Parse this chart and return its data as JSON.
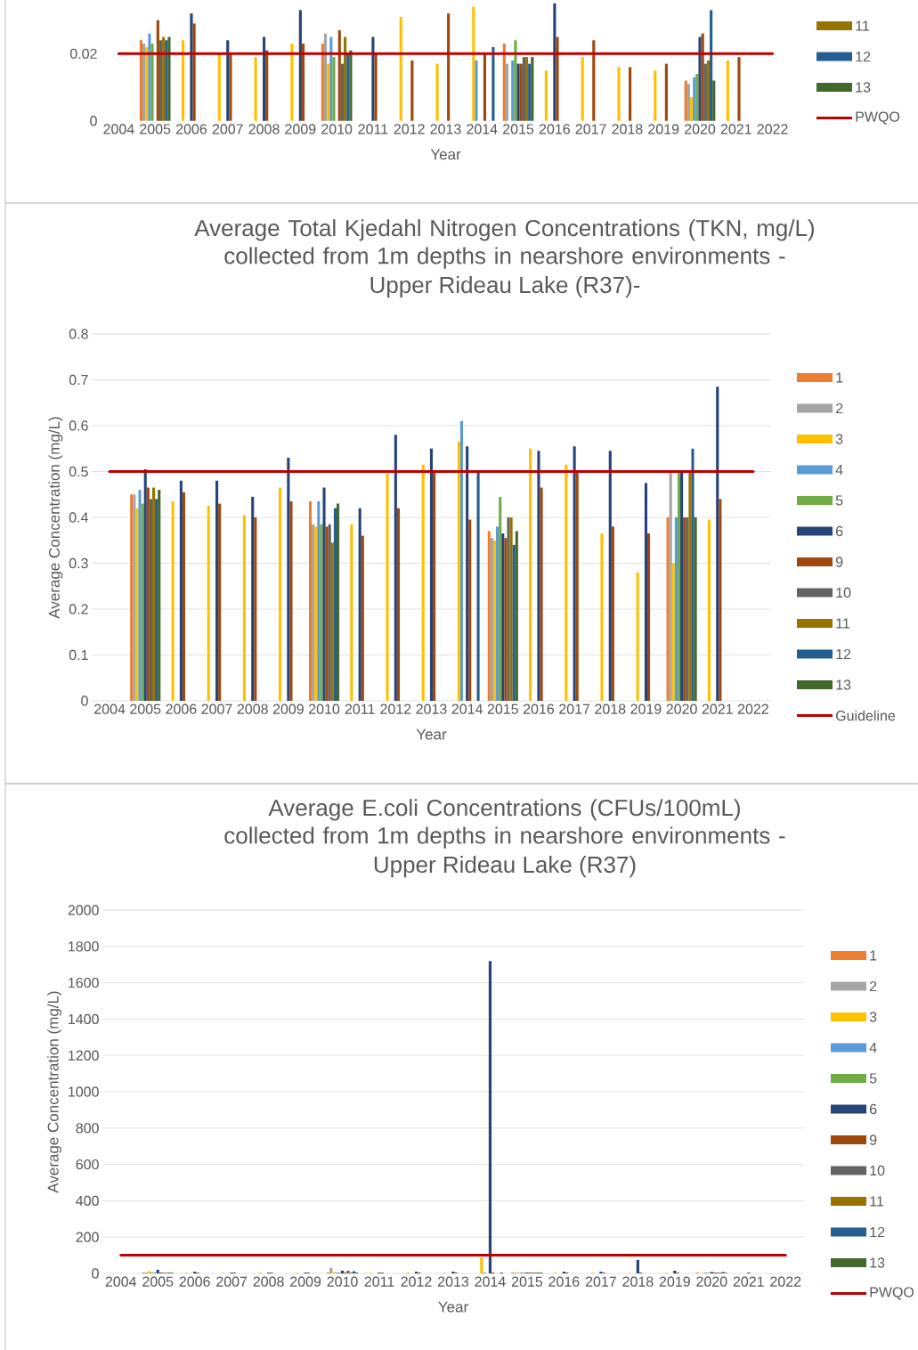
{
  "chart_data": [
    {
      "type": "bar",
      "xlabel": "Year",
      "categories": [
        "2004",
        "2005",
        "2006",
        "2007",
        "2008",
        "2009",
        "2010",
        "2011",
        "2012",
        "2013",
        "2014",
        "2015",
        "2016",
        "2017",
        "2018",
        "2019",
        "2020",
        "2021",
        "2022"
      ],
      "ylim": [
        0,
        0.036
      ],
      "yticks": [
        0,
        0.02
      ],
      "legend": "right",
      "ref_lines": [
        {
          "axis": "y",
          "value": 0.02,
          "label": "PWQO",
          "color": "#c00000",
          "line_style": "solid"
        }
      ],
      "series": [
        {
          "color": "#ed7d31",
          "values": [
            null,
            0.024,
            null,
            null,
            null,
            null,
            0.023,
            null,
            null,
            null,
            null,
            0.023,
            null,
            null,
            null,
            null,
            0.012,
            null,
            null
          ]
        },
        {
          "color": "#a5a5a5",
          "values": [
            null,
            0.023,
            null,
            null,
            null,
            null,
            0.026,
            null,
            null,
            null,
            null,
            0.017,
            null,
            null,
            null,
            null,
            0.011,
            null,
            null
          ]
        },
        {
          "color": "#ffc000",
          "values": [
            null,
            0.022,
            0.024,
            0.02,
            0.019,
            0.023,
            0.017,
            null,
            0.031,
            0.017,
            0.034,
            null,
            0.015,
            0.019,
            0.016,
            0.015,
            0.007,
            0.018,
            null
          ]
        },
        {
          "color": "#5b9bd5",
          "values": [
            null,
            0.026,
            null,
            null,
            null,
            null,
            0.025,
            null,
            null,
            null,
            0.018,
            0.018,
            null,
            null,
            null,
            null,
            0.013,
            null,
            null
          ]
        },
        {
          "color": "#70ad47",
          "values": [
            null,
            0.023,
            null,
            null,
            null,
            null,
            0.019,
            null,
            null,
            null,
            null,
            0.024,
            null,
            null,
            null,
            null,
            0.014,
            null,
            null
          ]
        },
        {
          "color": "#264478",
          "values": [
            null,
            null,
            0.032,
            0.024,
            0.025,
            0.033,
            null,
            0.025,
            null,
            null,
            null,
            0.017,
            0.035,
            null,
            null,
            null,
            0.025,
            null,
            null
          ]
        },
        {
          "color": "#9e480e",
          "values": [
            null,
            0.03,
            0.029,
            0.02,
            0.021,
            0.023,
            0.027,
            0.02,
            0.018,
            0.032,
            0.02,
            0.017,
            0.025,
            0.024,
            0.016,
            0.017,
            0.026,
            0.019,
            null
          ]
        },
        {
          "color": "#636363",
          "values": [
            null,
            0.024,
            null,
            null,
            null,
            null,
            0.017,
            null,
            null,
            null,
            null,
            0.019,
            null,
            null,
            null,
            null,
            0.017,
            null,
            null
          ]
        },
        {
          "name": "11",
          "color": "#997300",
          "values": [
            null,
            0.025,
            null,
            null,
            null,
            null,
            0.025,
            null,
            null,
            null,
            null,
            0.019,
            null,
            null,
            null,
            null,
            0.018,
            null,
            null
          ]
        },
        {
          "name": "12",
          "color": "#255e91",
          "values": [
            null,
            0.024,
            null,
            null,
            null,
            null,
            0.02,
            null,
            null,
            null,
            0.022,
            0.017,
            null,
            null,
            null,
            null,
            0.033,
            null,
            null
          ]
        },
        {
          "name": "13",
          "color": "#43682b",
          "values": [
            null,
            0.025,
            null,
            null,
            null,
            null,
            0.021,
            null,
            null,
            null,
            null,
            0.019,
            null,
            null,
            null,
            null,
            0.012,
            null,
            null
          ]
        }
      ]
    },
    {
      "type": "bar",
      "title": "Average Total Kjedahl Nitrogen Concentrations (TKN, mg/L) collected from 1m depths in nearshore environments -",
      "subtitle": "Upper Rideau Lake (R37)-",
      "xlabel": "Year",
      "ylabel": "Average Concentration (mg/L)",
      "categories": [
        "2004",
        "2005",
        "2006",
        "2007",
        "2008",
        "2009",
        "2010",
        "2011",
        "2012",
        "2013",
        "2014",
        "2015",
        "2016",
        "2017",
        "2018",
        "2019",
        "2020",
        "2021",
        "2022"
      ],
      "ylim": [
        0,
        0.8
      ],
      "yticks": [
        0,
        0.1,
        0.2,
        0.3,
        0.4,
        0.5,
        0.6,
        0.7,
        0.8
      ],
      "grid": "y",
      "legend": "right",
      "ref_lines": [
        {
          "axis": "y",
          "value": 0.5,
          "label": "Guideline",
          "color": "#c00000",
          "line_style": "solid"
        }
      ],
      "series": [
        {
          "name": "1",
          "color": "#ed7d31",
          "values": [
            null,
            0.45,
            null,
            null,
            null,
            null,
            0.435,
            null,
            null,
            null,
            null,
            0.37,
            null,
            null,
            null,
            null,
            0.4,
            null,
            null
          ]
        },
        {
          "name": "2",
          "color": "#a5a5a5",
          "values": [
            null,
            0.45,
            null,
            null,
            null,
            null,
            0.385,
            null,
            null,
            null,
            null,
            0.355,
            null,
            null,
            null,
            null,
            0.5,
            null,
            null
          ]
        },
        {
          "name": "3",
          "color": "#ffc000",
          "values": [
            null,
            0.42,
            0.435,
            0.425,
            0.405,
            0.465,
            0.38,
            0.385,
            0.495,
            0.515,
            0.565,
            0.35,
            0.55,
            0.515,
            0.365,
            0.28,
            0.3,
            0.395,
            null
          ]
        },
        {
          "name": "4",
          "color": "#5b9bd5",
          "values": [
            null,
            0.46,
            null,
            null,
            null,
            null,
            0.435,
            null,
            null,
            null,
            0.61,
            0.38,
            null,
            null,
            null,
            null,
            0.4,
            null,
            null
          ]
        },
        {
          "name": "5",
          "color": "#70ad47",
          "values": [
            null,
            0.43,
            null,
            null,
            null,
            null,
            0.385,
            null,
            null,
            null,
            null,
            0.445,
            null,
            null,
            null,
            null,
            0.5,
            null,
            null
          ]
        },
        {
          "name": "6",
          "color": "#264478",
          "values": [
            null,
            0.505,
            0.48,
            0.48,
            0.445,
            0.53,
            0.465,
            0.42,
            0.58,
            0.55,
            0.555,
            0.365,
            0.545,
            0.555,
            0.545,
            0.475,
            0.5,
            0.685,
            null
          ]
        },
        {
          "name": "9",
          "color": "#9e480e",
          "values": [
            null,
            0.465,
            0.455,
            0.43,
            0.4,
            0.435,
            0.38,
            0.36,
            0.42,
            0.5,
            0.395,
            0.355,
            0.465,
            0.5,
            0.38,
            0.365,
            0.4,
            0.44,
            null
          ]
        },
        {
          "name": "10",
          "color": "#636363",
          "values": [
            null,
            0.44,
            null,
            null,
            null,
            null,
            0.385,
            null,
            null,
            null,
            null,
            0.4,
            null,
            null,
            null,
            null,
            0.4,
            null,
            null
          ]
        },
        {
          "name": "11",
          "color": "#997300",
          "values": [
            null,
            0.465,
            null,
            null,
            null,
            null,
            0.345,
            null,
            null,
            null,
            null,
            0.4,
            null,
            null,
            null,
            null,
            0.5,
            null,
            null
          ]
        },
        {
          "name": "12",
          "color": "#255e91",
          "values": [
            null,
            0.44,
            null,
            null,
            null,
            null,
            0.42,
            null,
            null,
            null,
            0.5,
            0.34,
            null,
            null,
            null,
            null,
            0.55,
            null,
            null
          ]
        },
        {
          "name": "13",
          "color": "#43682b",
          "values": [
            null,
            0.46,
            null,
            null,
            null,
            null,
            0.43,
            null,
            null,
            null,
            null,
            0.37,
            null,
            null,
            null,
            null,
            0.4,
            null,
            null
          ]
        }
      ]
    },
    {
      "type": "bar",
      "title": "Average E.coli Concentrations (CFUs/100mL) collected from 1m depths in nearshore environments -",
      "subtitle": "Upper Rideau Lake (R37)",
      "xlabel": "Year",
      "ylabel": "Average Concentration (mg/L)",
      "categories": [
        "2004",
        "2005",
        "2006",
        "2007",
        "2008",
        "2009",
        "2010",
        "2011",
        "2012",
        "2013",
        "2014",
        "2015",
        "2016",
        "2017",
        "2018",
        "2019",
        "2020",
        "2021",
        "2022"
      ],
      "ylim": [
        0,
        2000
      ],
      "yticks": [
        0,
        200,
        400,
        600,
        800,
        1000,
        1200,
        1400,
        1600,
        1800,
        2000
      ],
      "grid": "y",
      "legend": "right",
      "ref_lines": [
        {
          "axis": "y",
          "value": 100,
          "label": "PWQO",
          "color": "#c00000",
          "line_style": "solid"
        }
      ],
      "series": [
        {
          "name": "1",
          "color": "#ed7d31",
          "values": [
            null,
            5,
            null,
            null,
            null,
            null,
            5,
            null,
            null,
            null,
            null,
            5,
            null,
            null,
            null,
            null,
            5,
            null,
            null
          ]
        },
        {
          "name": "2",
          "color": "#a5a5a5",
          "values": [
            null,
            5,
            null,
            null,
            null,
            null,
            30,
            null,
            null,
            null,
            null,
            5,
            null,
            null,
            null,
            null,
            null,
            null,
            null
          ]
        },
        {
          "name": "3",
          "color": "#ffc000",
          "values": [
            null,
            12,
            4,
            3,
            4,
            4,
            8,
            4,
            4,
            3,
            88,
            5,
            4,
            4,
            3,
            4,
            3,
            null,
            null
          ]
        },
        {
          "name": "4",
          "color": "#5b9bd5",
          "values": [
            null,
            5,
            null,
            null,
            null,
            null,
            5,
            null,
            null,
            null,
            5,
            5,
            null,
            null,
            null,
            null,
            5,
            null,
            null
          ]
        },
        {
          "name": "5",
          "color": "#70ad47",
          "values": [
            null,
            5,
            null,
            null,
            null,
            null,
            5,
            null,
            null,
            null,
            null,
            5,
            null,
            null,
            null,
            null,
            3,
            null,
            null
          ]
        },
        {
          "name": "6",
          "color": "#264478",
          "values": [
            null,
            20,
            10,
            5,
            5,
            5,
            15,
            5,
            10,
            10,
            1720,
            5,
            10,
            10,
            74,
            15,
            8,
            5,
            null
          ]
        },
        {
          "name": "9",
          "color": "#9e480e",
          "values": [
            null,
            5,
            5,
            5,
            5,
            5,
            5,
            5,
            5,
            5,
            5,
            5,
            5,
            5,
            5,
            5,
            5,
            null,
            null
          ]
        },
        {
          "name": "10",
          "color": "#636363",
          "values": [
            null,
            4,
            null,
            null,
            null,
            null,
            15,
            null,
            null,
            null,
            null,
            5,
            null,
            null,
            null,
            null,
            5,
            null,
            null
          ]
        },
        {
          "name": "11",
          "color": "#997300",
          "values": [
            null,
            4,
            null,
            null,
            null,
            null,
            5,
            null,
            null,
            null,
            null,
            5,
            null,
            null,
            null,
            null,
            5,
            null,
            null
          ]
        },
        {
          "name": "12",
          "color": "#255e91",
          "values": [
            null,
            5,
            null,
            null,
            null,
            null,
            12,
            null,
            null,
            null,
            5,
            5,
            null,
            null,
            null,
            null,
            8,
            null,
            null
          ]
        },
        {
          "name": "13",
          "color": "#43682b",
          "values": [
            null,
            4,
            null,
            null,
            null,
            null,
            5,
            null,
            null,
            null,
            null,
            5,
            null,
            null,
            null,
            null,
            3,
            null,
            null
          ]
        }
      ]
    }
  ]
}
